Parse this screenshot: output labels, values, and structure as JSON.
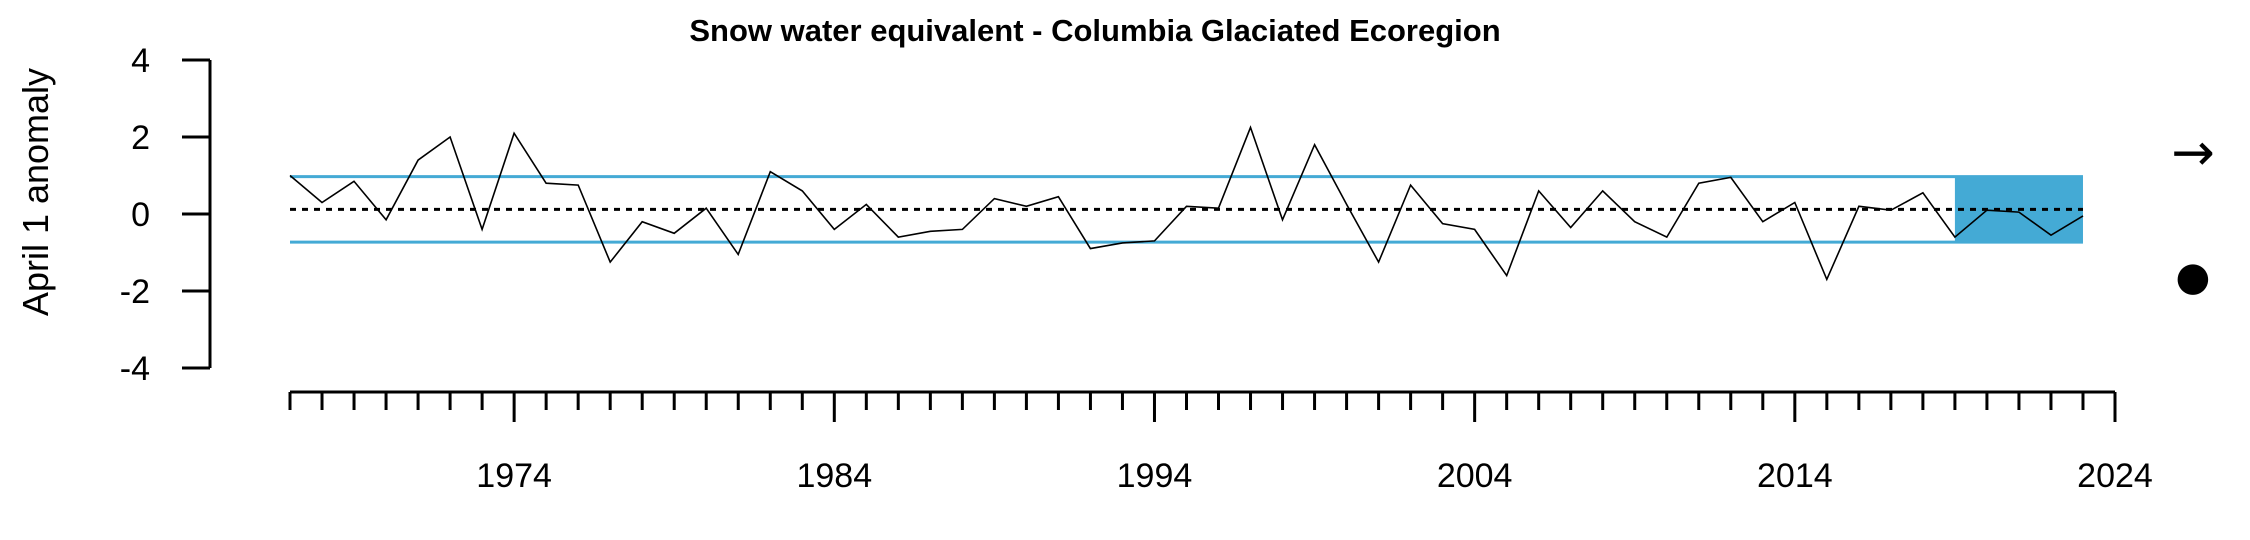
{
  "chart_data": {
    "type": "line",
    "title": "Snow water equivalent - Columbia Glaciated Ecoregion",
    "xlabel": "",
    "ylabel": "April 1 anomaly",
    "xlim": [
      1967,
      2024
    ],
    "ylim": [
      -4,
      4
    ],
    "x_ticks": [
      1974,
      1984,
      1994,
      2004,
      2014,
      2024
    ],
    "y_ticks": [
      4,
      2,
      0,
      -2,
      -4
    ],
    "x": [
      1967,
      1968,
      1969,
      1970,
      1971,
      1972,
      1973,
      1974,
      1975,
      1976,
      1977,
      1978,
      1979,
      1980,
      1981,
      1982,
      1983,
      1984,
      1985,
      1986,
      1987,
      1988,
      1989,
      1990,
      1991,
      1992,
      1993,
      1994,
      1995,
      1996,
      1997,
      1998,
      1999,
      2000,
      2001,
      2002,
      2003,
      2004,
      2005,
      2006,
      2007,
      2008,
      2009,
      2010,
      2011,
      2012,
      2013,
      2014,
      2015,
      2016,
      2017,
      2018,
      2019,
      2020,
      2021,
      2022,
      2023
    ],
    "series": [
      {
        "values": [
          1.0,
          0.3,
          0.85,
          -0.15,
          1.4,
          2.0,
          -0.4,
          2.1,
          0.8,
          0.75,
          -1.25,
          -0.2,
          -0.5,
          0.15,
          -1.05,
          1.1,
          0.6,
          -0.4,
          0.25,
          -0.6,
          -0.45,
          -0.4,
          0.4,
          0.2,
          0.45,
          -0.9,
          -0.75,
          -0.7,
          0.2,
          0.15,
          2.25,
          -0.15,
          1.8,
          0.25,
          -1.25,
          0.75,
          -0.25,
          -0.4,
          -1.6,
          0.6,
          -0.35,
          0.6,
          -0.2,
          -0.6,
          0.8,
          0.95,
          -0.2,
          0.3,
          -1.7,
          0.2,
          0.1,
          0.55,
          -0.6,
          0.1,
          0.05,
          -0.55,
          -0.05
        ]
      }
    ],
    "mean": 0.12,
    "band_upper": 0.97,
    "band_lower": -0.73,
    "highlight_range": [
      2019,
      2023
    ],
    "line_color": "#000000",
    "band_color": "#44aad5",
    "highlight_color": "#44aad5",
    "trend_symbol": "→",
    "status_symbol": "●"
  }
}
